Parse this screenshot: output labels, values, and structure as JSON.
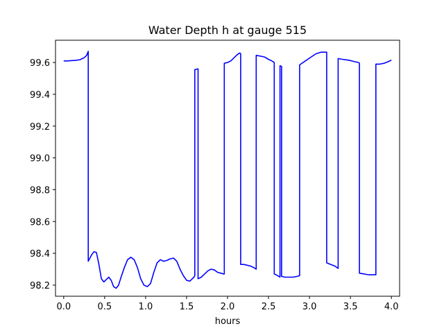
{
  "chart_data": {
    "type": "line",
    "title": "Water Depth h at gauge 515",
    "xlabel": "hours",
    "ylabel": "",
    "xlim": [
      -0.1,
      4.1
    ],
    "ylim": [
      98.13,
      99.74
    ],
    "xticks": [
      0.0,
      0.5,
      1.0,
      1.5,
      2.0,
      2.5,
      3.0,
      3.5,
      4.0
    ],
    "xtick_labels": [
      "0.0",
      "0.5",
      "1.0",
      "1.5",
      "2.0",
      "2.5",
      "3.0",
      "3.5",
      "4.0"
    ],
    "yticks": [
      98.2,
      98.4,
      98.6,
      98.8,
      99.0,
      99.2,
      99.4,
      99.6
    ],
    "ytick_labels": [
      "98.2",
      "98.4",
      "98.6",
      "98.8",
      "99.0",
      "99.2",
      "99.4",
      "99.6"
    ],
    "grid": false,
    "series": [
      {
        "color": "#0000ff",
        "x": [
          0.0,
          0.05,
          0.1,
          0.15,
          0.2,
          0.25,
          0.28,
          0.3,
          0.3,
          0.31,
          0.34,
          0.37,
          0.4,
          0.43,
          0.46,
          0.49,
          0.52,
          0.55,
          0.58,
          0.61,
          0.64,
          0.67,
          0.7,
          0.74,
          0.78,
          0.82,
          0.86,
          0.9,
          0.94,
          0.98,
          1.02,
          1.06,
          1.1,
          1.14,
          1.18,
          1.22,
          1.26,
          1.3,
          1.34,
          1.38,
          1.42,
          1.46,
          1.5,
          1.54,
          1.57,
          1.59,
          1.6,
          1.6,
          1.64,
          1.64,
          1.68,
          1.72,
          1.76,
          1.8,
          1.84,
          1.88,
          1.92,
          1.95,
          1.96,
          1.96,
          2.0,
          2.04,
          2.08,
          2.12,
          2.15,
          2.16,
          2.16,
          2.2,
          2.24,
          2.28,
          2.32,
          2.35,
          2.35,
          2.4,
          2.45,
          2.5,
          2.54,
          2.57,
          2.57,
          2.61,
          2.64,
          2.64,
          2.66,
          2.66,
          2.7,
          2.75,
          2.8,
          2.85,
          2.88,
          2.88,
          2.95,
          3.02,
          3.08,
          3.14,
          3.2,
          3.21,
          3.21,
          3.26,
          3.31,
          3.35,
          3.35,
          3.4,
          3.45,
          3.5,
          3.55,
          3.6,
          3.61,
          3.61,
          3.67,
          3.72,
          3.77,
          3.81,
          3.81,
          3.86,
          3.91,
          3.96,
          4.0
        ],
        "y": [
          99.61,
          99.61,
          99.612,
          99.614,
          99.618,
          99.63,
          99.645,
          99.67,
          98.35,
          98.36,
          98.39,
          98.41,
          98.405,
          98.33,
          98.24,
          98.22,
          98.235,
          98.25,
          98.23,
          98.19,
          98.18,
          98.2,
          98.25,
          98.31,
          98.36,
          98.375,
          98.36,
          98.31,
          98.24,
          98.2,
          98.19,
          98.21,
          98.28,
          98.34,
          98.36,
          98.35,
          98.355,
          98.365,
          98.37,
          98.35,
          98.3,
          98.26,
          98.23,
          98.225,
          98.24,
          98.25,
          98.26,
          99.555,
          99.56,
          98.24,
          98.25,
          98.27,
          98.29,
          98.3,
          98.295,
          98.28,
          98.275,
          98.27,
          98.27,
          99.595,
          99.6,
          99.61,
          99.63,
          99.65,
          99.66,
          99.655,
          98.33,
          98.33,
          98.325,
          98.32,
          98.31,
          98.3,
          99.645,
          99.64,
          99.635,
          99.62,
          99.61,
          99.6,
          98.27,
          98.26,
          98.25,
          99.58,
          99.575,
          98.255,
          98.25,
          98.25,
          98.25,
          98.255,
          98.26,
          99.585,
          99.61,
          99.635,
          99.655,
          99.665,
          99.665,
          99.665,
          98.34,
          98.33,
          98.32,
          98.305,
          99.625,
          99.62,
          99.617,
          99.612,
          99.605,
          99.6,
          99.595,
          98.275,
          98.27,
          98.265,
          98.265,
          98.265,
          99.59,
          99.59,
          99.595,
          99.605,
          99.615
        ]
      }
    ]
  }
}
